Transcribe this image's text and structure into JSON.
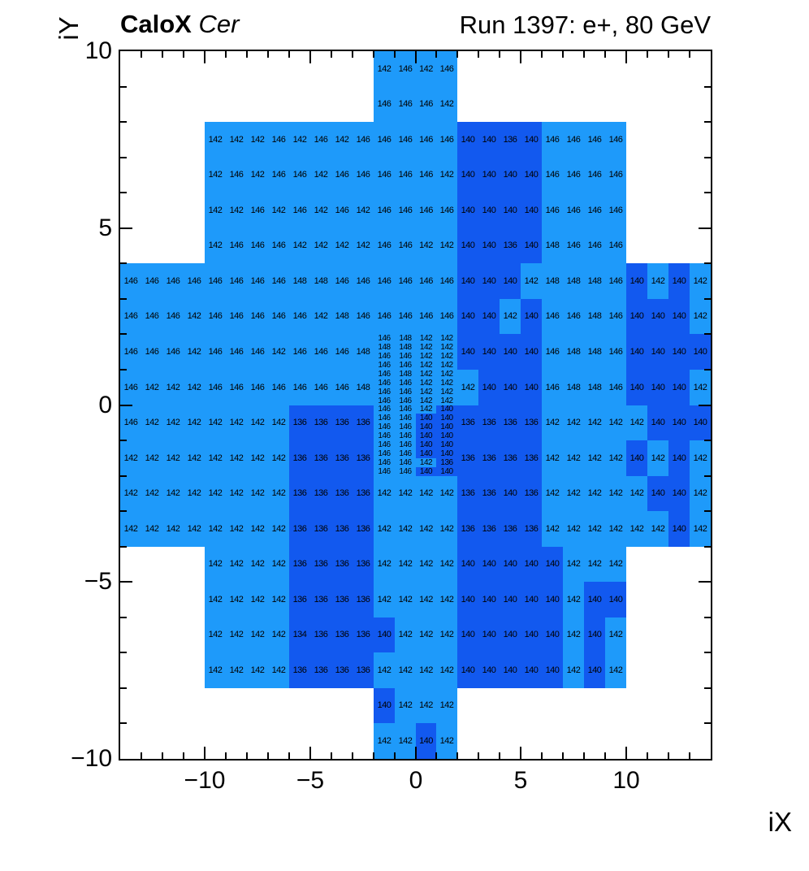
{
  "title": {
    "left_bold": "CaloX",
    "left_italic": " Cer",
    "right": "Run 1397: e+, 80 GeV"
  },
  "colors": {
    "light": "#1E9AFA",
    "dark": "#1259EF",
    "frame": "#000000",
    "value_color_threshold": 142
  },
  "x_axis": {
    "title": "iX",
    "ticks": [
      -10,
      -5,
      0,
      5,
      10
    ],
    "tick_labels": [
      "−10",
      "−5",
      "0",
      "5",
      "10"
    ],
    "range": [
      -14,
      14
    ]
  },
  "y_axis": {
    "title": "iY",
    "ticks": [
      10,
      5,
      0,
      -5,
      -10
    ],
    "tick_labels": [
      "10",
      "5",
      "0",
      "−5",
      "−10"
    ],
    "range": [
      -10,
      10
    ]
  },
  "chart_data": {
    "type": "heatmap",
    "x_range": [
      -14,
      14
    ],
    "y_range": [
      -10,
      10
    ],
    "grid": false,
    "color_rule": "cell value >= 142 rendered light blue, value <= 140 rendered dark blue",
    "unit_rows": [
      {
        "y": 9,
        "x0": -2,
        "values": [
          142,
          146,
          142,
          146
        ]
      },
      {
        "y": 8,
        "x0": -2,
        "values": [
          146,
          146,
          146,
          142
        ]
      },
      {
        "y": 7,
        "x0": -10,
        "values": [
          142,
          142,
          142,
          146,
          142,
          146,
          142,
          146,
          146,
          146,
          146,
          146,
          140,
          140,
          136,
          140,
          146,
          146,
          146,
          146
        ]
      },
      {
        "y": 6,
        "x0": -10,
        "values": [
          142,
          146,
          142,
          146,
          146,
          142,
          146,
          146,
          146,
          146,
          146,
          142,
          140,
          140,
          140,
          140,
          146,
          146,
          146,
          146
        ]
      },
      {
        "y": 5,
        "x0": -10,
        "values": [
          142,
          142,
          146,
          142,
          146,
          142,
          146,
          142,
          146,
          146,
          146,
          146,
          140,
          140,
          140,
          140,
          146,
          146,
          146,
          146
        ]
      },
      {
        "y": 4,
        "x0": -10,
        "values": [
          142,
          146,
          146,
          146,
          142,
          142,
          142,
          142,
          146,
          146,
          142,
          142,
          140,
          140,
          136,
          140,
          148,
          146,
          146,
          146
        ]
      },
      {
        "y": 3,
        "x0": -14,
        "values": [
          146,
          146,
          146,
          146,
          146,
          146,
          146,
          146,
          148,
          148,
          146,
          146,
          146,
          146,
          146,
          146,
          140,
          140,
          140,
          142,
          148,
          148,
          148,
          146,
          140,
          142,
          140,
          142
        ]
      },
      {
        "y": 2,
        "x0": -14,
        "values": [
          146,
          146,
          146,
          142,
          146,
          146,
          146,
          146,
          146,
          142,
          148,
          146,
          146,
          146,
          146,
          146,
          140,
          140,
          142,
          140,
          146,
          146,
          148,
          146,
          140,
          140,
          140,
          142
        ]
      },
      {
        "y": 1,
        "x0": -14,
        "values": [
          146,
          146,
          146,
          142,
          146,
          146,
          146,
          142,
          146,
          146,
          146,
          148
        ]
      },
      {
        "y": 1,
        "x0": 2,
        "values": [
          140,
          140,
          140,
          140,
          146,
          148,
          148,
          146,
          140,
          140,
          140,
          140
        ]
      },
      {
        "y": 0,
        "x0": -14,
        "values": [
          146,
          142,
          142,
          142,
          146,
          146,
          146,
          146,
          146,
          146,
          146,
          148
        ]
      },
      {
        "y": 0,
        "x0": 2,
        "values": [
          142,
          140,
          140,
          140,
          146,
          148,
          148,
          146,
          140,
          140,
          140,
          142
        ]
      },
      {
        "y": -1,
        "x0": -14,
        "values": [
          146,
          142,
          142,
          142,
          142,
          142,
          142,
          142,
          136,
          136,
          136,
          136
        ]
      },
      {
        "y": -1,
        "x0": 2,
        "values": [
          136,
          136,
          136,
          136,
          142,
          142,
          142,
          142,
          142,
          140,
          140,
          140
        ]
      },
      {
        "y": -2,
        "x0": -14,
        "values": [
          142,
          142,
          142,
          142,
          142,
          142,
          142,
          142,
          136,
          136,
          136,
          136
        ]
      },
      {
        "y": -2,
        "x0": 2,
        "values": [
          136,
          136,
          136,
          136,
          142,
          142,
          142,
          142,
          140,
          142,
          140,
          142
        ]
      },
      {
        "y": -3,
        "x0": -14,
        "values": [
          142,
          142,
          142,
          142,
          142,
          142,
          142,
          142,
          136,
          136,
          136,
          136,
          142,
          142,
          142,
          142,
          136,
          136,
          140,
          136,
          142,
          142,
          142,
          142,
          142,
          140,
          140,
          142
        ]
      },
      {
        "y": -4,
        "x0": -14,
        "values": [
          142,
          142,
          142,
          142,
          142,
          142,
          142,
          142,
          136,
          136,
          136,
          136,
          142,
          142,
          142,
          142,
          136,
          136,
          136,
          136,
          142,
          142,
          142,
          142,
          142,
          142,
          140,
          142
        ]
      },
      {
        "y": -5,
        "x0": -10,
        "values": [
          142,
          142,
          142,
          142,
          136,
          136,
          136,
          136,
          142,
          142,
          142,
          142,
          140,
          140,
          140,
          140,
          140,
          142,
          142,
          142
        ]
      },
      {
        "y": -6,
        "x0": -10,
        "values": [
          142,
          142,
          142,
          142,
          136,
          136,
          136,
          136,
          142,
          142,
          142,
          142,
          140,
          140,
          140,
          140,
          140,
          142,
          140,
          140
        ]
      },
      {
        "y": -7,
        "x0": -10,
        "values": [
          142,
          142,
          142,
          142,
          134,
          136,
          136,
          136,
          140,
          142,
          142,
          142,
          140,
          140,
          140,
          140,
          140,
          142,
          140,
          142
        ]
      },
      {
        "y": -8,
        "x0": -10,
        "values": [
          142,
          142,
          142,
          142,
          136,
          136,
          136,
          136,
          142,
          142,
          142,
          142,
          140,
          140,
          140,
          140,
          140,
          142,
          140,
          142
        ]
      },
      {
        "y": -9,
        "x0": -2,
        "values": [
          140,
          142,
          142,
          142
        ]
      },
      {
        "y": -10,
        "x0": -2,
        "values": [
          142,
          142,
          140,
          142
        ]
      }
    ],
    "fine_rows": {
      "x0": -2,
      "y_top": 2,
      "row_height": 0.25,
      "rows": [
        [
          146,
          148,
          142,
          142
        ],
        [
          148,
          148,
          142,
          142
        ],
        [
          146,
          146,
          142,
          142
        ],
        [
          146,
          146,
          142,
          142
        ],
        [
          146,
          148,
          142,
          142
        ],
        [
          146,
          146,
          142,
          142
        ],
        [
          146,
          146,
          142,
          142
        ],
        [
          146,
          146,
          142,
          142
        ],
        [
          146,
          146,
          142,
          140
        ],
        [
          146,
          146,
          140,
          140
        ],
        [
          146,
          146,
          140,
          140
        ],
        [
          146,
          146,
          140,
          140
        ],
        [
          146,
          146,
          140,
          140
        ],
        [
          146,
          146,
          140,
          140
        ],
        [
          146,
          146,
          142,
          136
        ],
        [
          146,
          146,
          140,
          140
        ]
      ]
    }
  }
}
